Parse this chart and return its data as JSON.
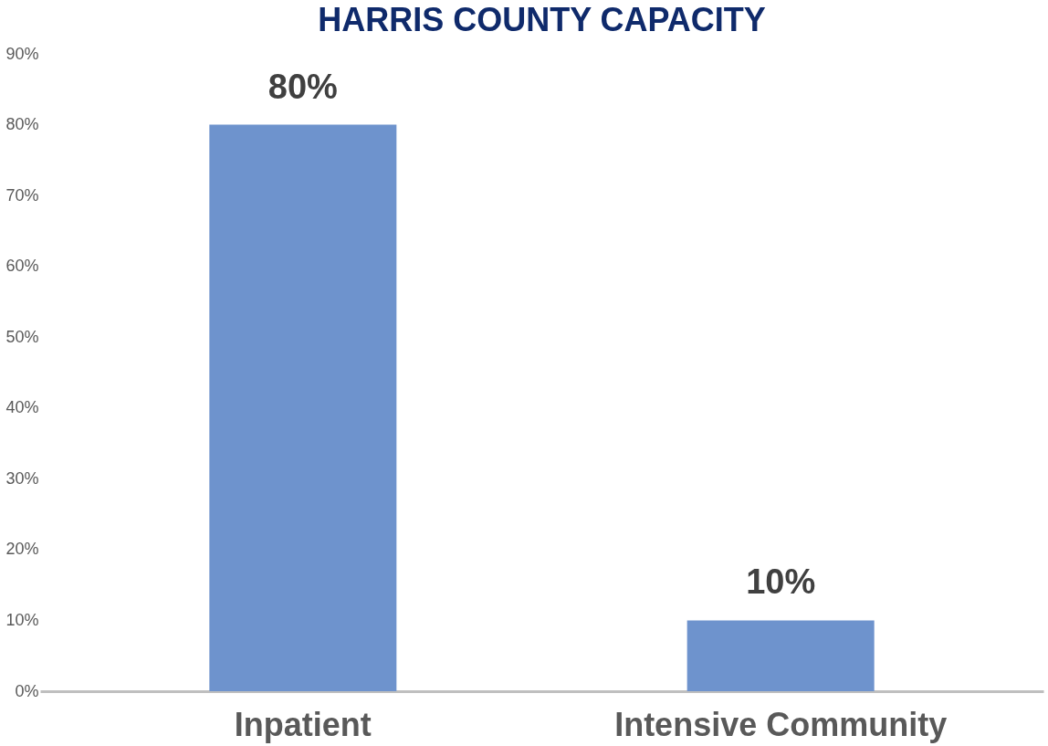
{
  "chart_data": {
    "type": "bar",
    "title": "HARRIS COUNTY CAPACITY",
    "categories": [
      "Inpatient",
      "Intensive Community"
    ],
    "values": [
      80,
      10
    ],
    "color": "#6e93cd",
    "value_labels": [
      "80%",
      "10%"
    ],
    "ylim": [
      0,
      90
    ],
    "yticks": [
      {
        "value": 0,
        "label": "0%"
      },
      {
        "value": 10,
        "label": "10%"
      },
      {
        "value": 20,
        "label": "20%"
      },
      {
        "value": 30,
        "label": "30%"
      },
      {
        "value": 40,
        "label": "40%"
      },
      {
        "value": 50,
        "label": "50%"
      },
      {
        "value": 60,
        "label": "60%"
      },
      {
        "value": 70,
        "label": "70%"
      },
      {
        "value": 80,
        "label": "80%"
      },
      {
        "value": 90,
        "label": "90%"
      }
    ],
    "grid": false
  }
}
